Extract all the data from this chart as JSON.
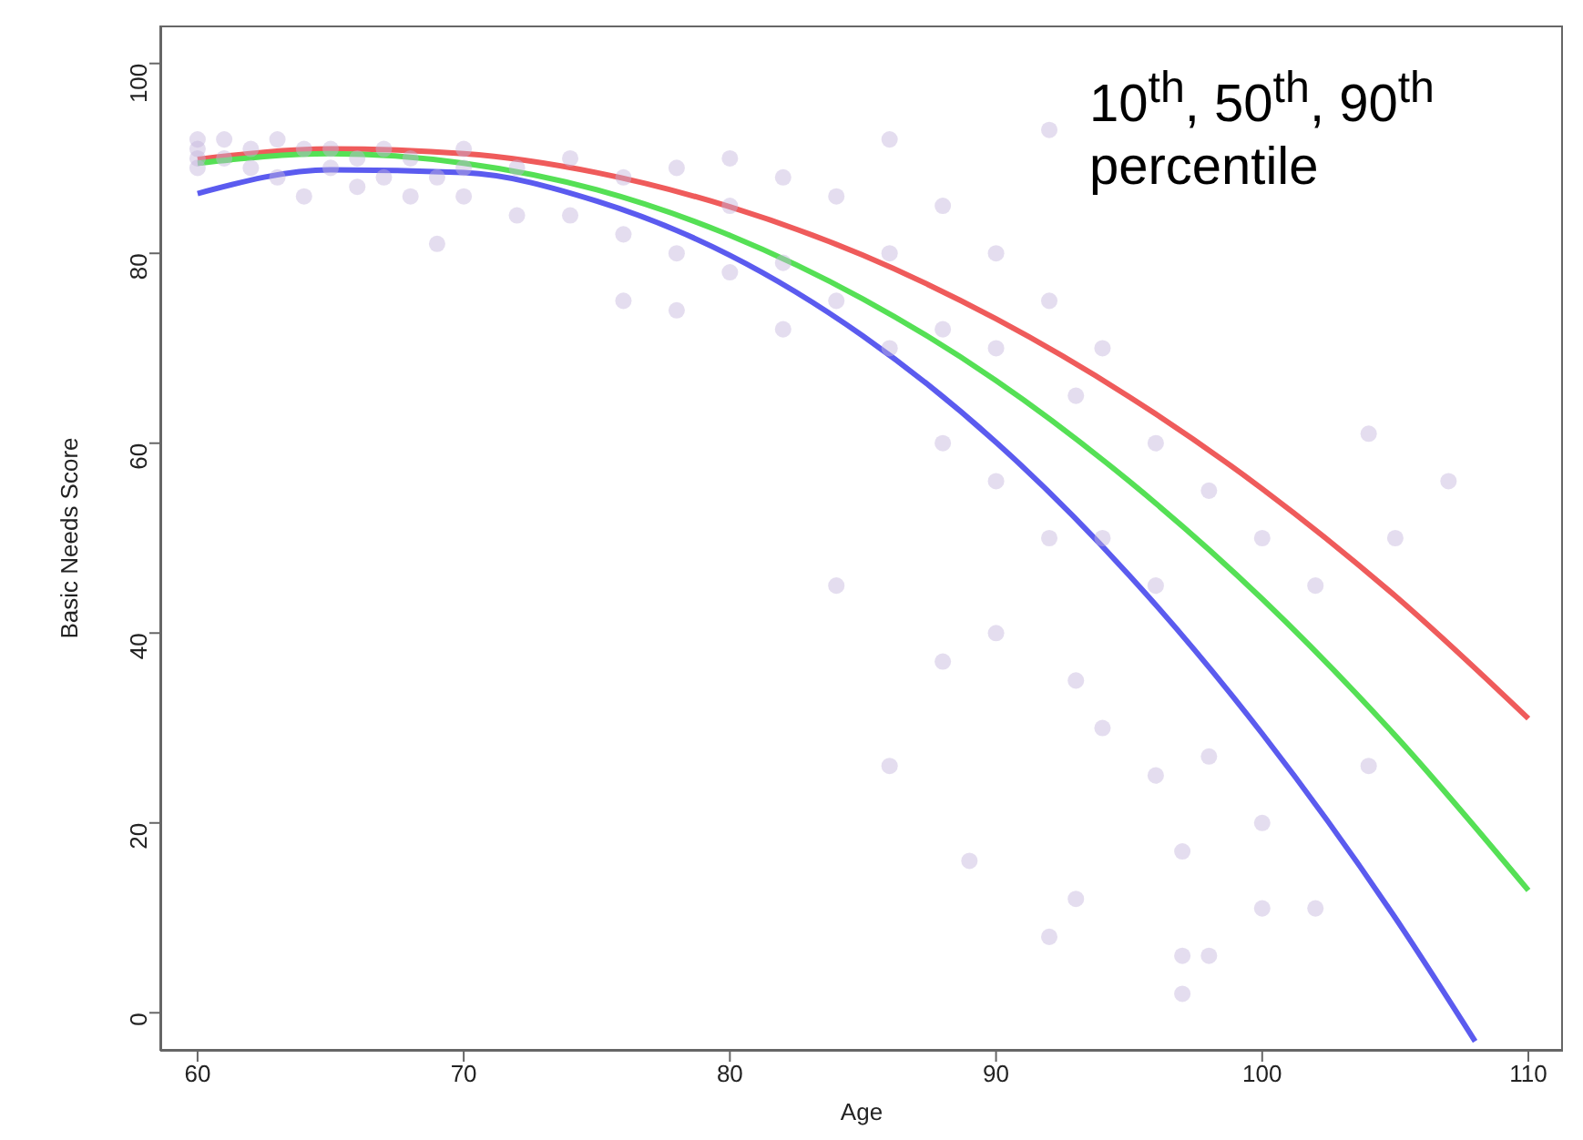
{
  "chart_data": {
    "type": "line",
    "xlabel": "Age",
    "ylabel": "Basic Needs Score",
    "xlim": [
      58.6,
      111.3
    ],
    "ylim": [
      -4,
      104
    ],
    "xticks": [
      60,
      70,
      80,
      90,
      100,
      110
    ],
    "yticks": [
      0,
      20,
      40,
      60,
      80,
      100
    ],
    "grid": false,
    "line_style": "solid",
    "annotations": [
      "10$^{th}$, 50$^{th}$, 90$^{th}$ percentile"
    ],
    "series": [
      {
        "type": "scatter",
        "marker": "circle",
        "color": "#c4b4dc",
        "x": [
          60,
          60,
          60,
          60,
          61,
          61,
          62,
          62,
          63,
          63,
          64,
          64,
          65,
          65,
          66,
          66,
          67,
          67,
          68,
          68,
          69,
          69,
          70,
          70,
          70,
          72,
          72,
          74,
          74,
          76,
          76,
          76,
          78,
          78,
          78,
          80,
          80,
          80,
          82,
          82,
          82,
          84,
          84,
          84,
          86,
          86,
          86,
          86,
          88,
          88,
          88,
          88,
          89,
          90,
          90,
          90,
          90,
          92,
          92,
          92,
          92,
          93,
          93,
          93,
          94,
          94,
          94,
          96,
          96,
          96,
          97,
          97,
          97,
          98,
          98,
          98,
          100,
          100,
          100,
          102,
          102,
          104,
          104,
          105,
          107
        ],
        "values": [
          92,
          91,
          90,
          89,
          92,
          90,
          91,
          89,
          92,
          88,
          91,
          86,
          91,
          89,
          90,
          87,
          91,
          88,
          90,
          86,
          88,
          81,
          91,
          89,
          86,
          89,
          84,
          90,
          84,
          88,
          82,
          75,
          89,
          80,
          74,
          90,
          85,
          78,
          88,
          79,
          72,
          86,
          75,
          45,
          92,
          80,
          70,
          26,
          85,
          72,
          60,
          37,
          16,
          80,
          70,
          56,
          40,
          93,
          75,
          50,
          8,
          65,
          35,
          12,
          70,
          50,
          30,
          60,
          45,
          25,
          6,
          2,
          17,
          55,
          27,
          6,
          50,
          20,
          11,
          45,
          11,
          61,
          26,
          50,
          56
        ]
      },
      {
        "color": "#ef5b5b",
        "x": [
          60,
          65,
          70,
          75,
          80,
          85,
          90,
          95,
          100,
          105,
          110
        ],
        "values": [
          89.9,
          91.0,
          90.5,
          88.5,
          84.9,
          79.8,
          73.1,
          64.9,
          55.2,
          43.9,
          31.0
        ]
      },
      {
        "color": "#55e055",
        "x": [
          60,
          65,
          70,
          75,
          80,
          85,
          90,
          95,
          100,
          105,
          110
        ],
        "values": [
          89.5,
          90.5,
          89.5,
          86.7,
          81.9,
          75.2,
          66.6,
          56.0,
          43.6,
          29.2,
          12.9
        ]
      },
      {
        "color": "#5b5bef",
        "x": [
          60,
          65,
          70,
          75,
          80,
          85,
          90,
          95,
          100,
          105,
          108
        ],
        "values": [
          86.3,
          88.8,
          88.5,
          85.5,
          79.8,
          71.3,
          60.1,
          46.1,
          29.4,
          10.0,
          -3.0
        ]
      }
    ]
  }
}
